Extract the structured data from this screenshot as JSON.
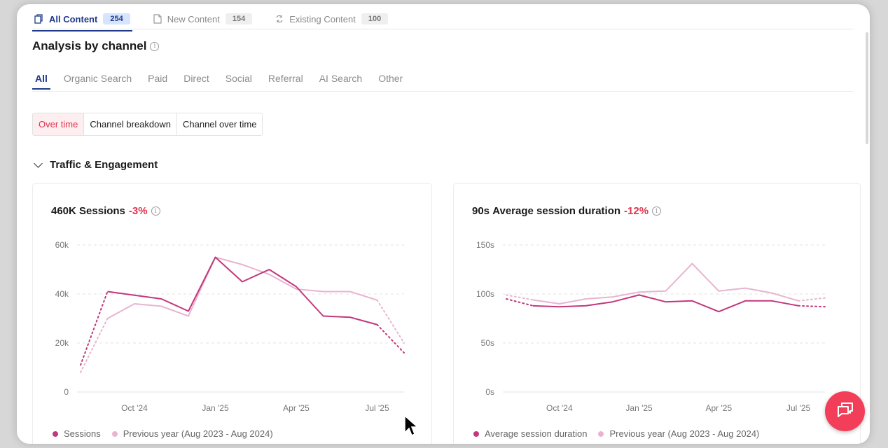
{
  "content_tabs": [
    {
      "label": "All Content",
      "count": "254",
      "active": true
    },
    {
      "label": "New Content",
      "count": "154",
      "active": false
    },
    {
      "label": "Existing Content",
      "count": "100",
      "active": false
    }
  ],
  "section": {
    "title": "Analysis by channel"
  },
  "channel_tabs": [
    "All",
    "Organic Search",
    "Paid",
    "Direct",
    "Social",
    "Referral",
    "AI Search",
    "Other"
  ],
  "view_options": [
    "Over time",
    "Channel breakdown",
    "Channel over time"
  ],
  "group": {
    "title": "Traffic & Engagement"
  },
  "colors": {
    "accent": "#1f3a8a",
    "negative": "#e0344d",
    "current": "#c2377d",
    "previous": "#e8b4d0",
    "chat": "#f23e58"
  },
  "cards": [
    {
      "value": "460K",
      "metric": "Sessions",
      "delta": "-3%",
      "legend": [
        "Sessions",
        "Previous year (Aug 2023 - Aug 2024)"
      ]
    },
    {
      "value": "90s",
      "metric": "Average session duration",
      "delta": "-12%",
      "legend": [
        "Average session duration",
        "Previous year (Aug 2023 - Aug 2024)"
      ]
    }
  ],
  "chart_data": [
    {
      "type": "line",
      "title": "460K Sessions",
      "y_tick_labels": [
        "0",
        "20k",
        "40k",
        "60k"
      ],
      "y_ticks": [
        0,
        20000,
        40000,
        60000
      ],
      "ylim": [
        0,
        60000
      ],
      "x_tick_labels": [
        "Oct '24",
        "Jan '25",
        "Apr '25",
        "Jul '25"
      ],
      "x_tick_positions": [
        2,
        5,
        8,
        11
      ],
      "grid": true,
      "legend_position": "bottom",
      "series": [
        {
          "name": "Sessions",
          "x": [
            0,
            1,
            2,
            3,
            4,
            5,
            6,
            7,
            8,
            9,
            10,
            11,
            12
          ],
          "values": [
            11000,
            41000,
            39500,
            38000,
            33000,
            55000,
            45000,
            50000,
            43000,
            31000,
            30500,
            27500,
            16000
          ],
          "dotted_ends": [
            0,
            12
          ]
        },
        {
          "name": "Previous year (Aug 2023 - Aug 2024)",
          "x": [
            0,
            1,
            2,
            3,
            4,
            5,
            6,
            7,
            8,
            9,
            10,
            11,
            12
          ],
          "values": [
            8000,
            30000,
            36000,
            35000,
            31000,
            55000,
            52000,
            48000,
            42000,
            41000,
            41000,
            37500,
            20000
          ],
          "dotted_ends": [
            0,
            12
          ]
        }
      ]
    },
    {
      "type": "line",
      "title": "90s Average session duration",
      "y_tick_labels": [
        "0s",
        "50s",
        "100s",
        "150s"
      ],
      "y_ticks": [
        0,
        50,
        100,
        150
      ],
      "ylim": [
        0,
        150
      ],
      "x_tick_labels": [
        "Oct '24",
        "Jan '25",
        "Apr '25",
        "Jul '25"
      ],
      "x_tick_positions": [
        2,
        5,
        8,
        11
      ],
      "grid": true,
      "legend_position": "bottom",
      "series": [
        {
          "name": "Average session duration",
          "x": [
            0,
            1,
            2,
            3,
            4,
            5,
            6,
            7,
            8,
            9,
            10,
            11,
            12
          ],
          "values": [
            95,
            88,
            87,
            88,
            92,
            99,
            92,
            93,
            82,
            93,
            93,
            88,
            87
          ],
          "dotted_ends": [
            0,
            12
          ]
        },
        {
          "name": "Previous year (Aug 2023 - Aug 2024)",
          "x": [
            0,
            1,
            2,
            3,
            4,
            5,
            6,
            7,
            8,
            9,
            10,
            11,
            12
          ],
          "values": [
            99,
            94,
            90,
            95,
            97,
            102,
            103,
            131,
            103,
            106,
            101,
            93,
            96
          ],
          "dotted_ends": [
            0,
            12
          ]
        }
      ]
    }
  ]
}
